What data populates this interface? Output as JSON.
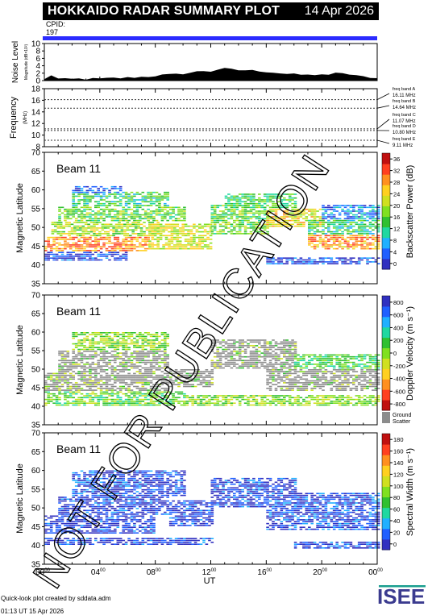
{
  "header": {
    "title": "HOKKAIDO RADAR SUMMARY PLOT",
    "date": "14 Apr 2026",
    "cpid_label": "CPID:",
    "cpid_value": "197"
  },
  "colors": {
    "header_bg": "#000000",
    "cpid_bar": "#2b2bff",
    "ground_scatter": "#8c8c8c"
  },
  "chart_data": [
    {
      "type": "area",
      "id": "noise",
      "ylabel": "Noise Level",
      "ylabel_sub": "Magnitude (dB×10²)",
      "ylim": [
        0,
        10
      ],
      "yticks": [
        "0",
        "2",
        "4",
        "6",
        "8",
        "10"
      ],
      "x": [
        0,
        0.5,
        1,
        1.5,
        2,
        2.5,
        3,
        3.5,
        4,
        4.5,
        5,
        5.5,
        6,
        6.5,
        7,
        7.5,
        8,
        8.5,
        9,
        9.5,
        10,
        10.5,
        11,
        11.5,
        12,
        12.5,
        13,
        13.5,
        14,
        14.5,
        15,
        15.5,
        16,
        16.5,
        17,
        17.5,
        18,
        18.5,
        19,
        19.5,
        20,
        20.5,
        21,
        21.5,
        22,
        22.5,
        23,
        23.5,
        24
      ],
      "values": [
        0.3,
        1.5,
        0.5,
        0.4,
        0.4,
        0.5,
        0.4,
        0.5,
        0.5,
        0.6,
        0.7,
        0.7,
        0.8,
        0.9,
        1.0,
        1.1,
        1.3,
        1.5,
        1.6,
        1.7,
        1.9,
        2.1,
        2.4,
        2.6,
        2.5,
        3.0,
        3.2,
        3.0,
        2.8,
        2.8,
        2.7,
        2.6,
        2.4,
        2.2,
        2.0,
        1.8,
        1.7,
        1.6,
        1.5,
        1.6,
        1.7,
        1.4,
        2.0,
        2.1,
        1.6,
        1.3,
        1.1,
        0.9,
        0.6
      ]
    },
    {
      "type": "line",
      "id": "frequency",
      "ylabel": "Frequency",
      "ylabel_sub": "(MHz)",
      "ylim": [
        8,
        18
      ],
      "yticks": [
        "8",
        "10",
        "12",
        "14",
        "16",
        "18"
      ],
      "series": [
        {
          "name": "freq band A",
          "value_label": "16.11 MHz",
          "values": [
            16.11
          ]
        },
        {
          "name": "freq band B",
          "value_label": "14.64 MHz",
          "values": [
            14.64
          ]
        },
        {
          "name": "freq band C",
          "value_label": "11.07 MHz",
          "values": [
            11.07
          ]
        },
        {
          "name": "freq band D",
          "value_label": "10.80 MHz",
          "values": [
            10.8
          ]
        },
        {
          "name": "freq band E",
          "value_label": "9.11 MHz",
          "values": [
            9.11
          ]
        }
      ]
    },
    {
      "type": "heatmap",
      "id": "power",
      "annotation": "Beam 11",
      "ylabel": "Magnetic Latitude",
      "ylim": [
        35,
        70
      ],
      "yticks": [
        "35",
        "40",
        "45",
        "50",
        "55",
        "60",
        "65",
        "70"
      ],
      "colorbar_label": "Backscatter Power (dB)",
      "colorbar_ticks": [
        "0",
        "4",
        "8",
        "12",
        "16",
        "20",
        "24",
        "28",
        "32",
        "36"
      ],
      "colorbar_colors": [
        "#3030c0",
        "#2060ff",
        "#20b0ff",
        "#20d8a0",
        "#30c030",
        "#80e020",
        "#d0e020",
        "#ffd020",
        "#ff9020",
        "#ff4020",
        "#c01010"
      ],
      "regions": [
        {
          "x": [
            0,
            6
          ],
          "lat": [
            41,
            43.5
          ],
          "level": 0.05
        },
        {
          "x": [
            0,
            7.5
          ],
          "lat": [
            43.5,
            47.5
          ],
          "level": 0.8
        },
        {
          "x": [
            0.5,
            8.5
          ],
          "lat": [
            47.5,
            51.5
          ],
          "level": 0.55
        },
        {
          "x": [
            1,
            10
          ],
          "lat": [
            51.5,
            55.5
          ],
          "level": 0.45
        },
        {
          "x": [
            2,
            9
          ],
          "lat": [
            55.5,
            59.5
          ],
          "level": 0.35
        },
        {
          "x": [
            2,
            5.5
          ],
          "lat": [
            59,
            61
          ],
          "level": 0.1
        },
        {
          "x": [
            7.5,
            12
          ],
          "lat": [
            44,
            51
          ],
          "level": 0.6
        },
        {
          "x": [
            12,
            16
          ],
          "lat": [
            48,
            56
          ],
          "level": 0.45
        },
        {
          "x": [
            13,
            18
          ],
          "lat": [
            55,
            59
          ],
          "level": 0.4
        },
        {
          "x": [
            16,
            20
          ],
          "lat": [
            50,
            55
          ],
          "level": 0.65
        },
        {
          "x": [
            19,
            24
          ],
          "lat": [
            44,
            48
          ],
          "level": 0.78
        },
        {
          "x": [
            19,
            24
          ],
          "lat": [
            48,
            52
          ],
          "level": 0.35
        },
        {
          "x": [
            20,
            24
          ],
          "lat": [
            52,
            56
          ],
          "level": 0.15
        },
        {
          "x": [
            16,
            24
          ],
          "lat": [
            40,
            42
          ],
          "level": 0.05
        }
      ]
    },
    {
      "type": "heatmap",
      "id": "velocity",
      "annotation": "Beam 11",
      "ylabel": "Magnetic Latitude",
      "ylim": [
        35,
        70
      ],
      "yticks": [
        "35",
        "40",
        "45",
        "50",
        "55",
        "60",
        "65",
        "70"
      ],
      "colorbar_label": "Doppler Velocity (m s⁻¹)",
      "colorbar_ticks": [
        "-800",
        "-600",
        "-400",
        "-200",
        "0",
        "200",
        "400",
        "600",
        "800"
      ],
      "colorbar_colors": [
        "#c01010",
        "#ff4020",
        "#ff9020",
        "#ffd020",
        "#d0e020",
        "#80e020",
        "#30c030",
        "#20d8a0",
        "#20b0ff",
        "#2060ff",
        "#3030c0"
      ],
      "ground_scatter_label": "Ground Scatter",
      "regions": [
        {
          "x": [
            0,
            10
          ],
          "lat": [
            40,
            44
          ],
          "level": 0.55
        },
        {
          "x": [
            0,
            9
          ],
          "lat": [
            44,
            49
          ],
          "level": -1
        },
        {
          "x": [
            1,
            9
          ],
          "lat": [
            49,
            55
          ],
          "level": -1
        },
        {
          "x": [
            2,
            9
          ],
          "lat": [
            55,
            60
          ],
          "level": 0.5
        },
        {
          "x": [
            9,
            12
          ],
          "lat": [
            45,
            50
          ],
          "level": -1
        },
        {
          "x": [
            12,
            18
          ],
          "lat": [
            50,
            58
          ],
          "level": -1
        },
        {
          "x": [
            16,
            24
          ],
          "lat": [
            44,
            50
          ],
          "level": -1
        },
        {
          "x": [
            18,
            24
          ],
          "lat": [
            50,
            54
          ],
          "level": 0.6
        },
        {
          "x": [
            10,
            24
          ],
          "lat": [
            40,
            43
          ],
          "level": 0.5
        }
      ]
    },
    {
      "type": "heatmap",
      "id": "width",
      "annotation": "Beam 11",
      "ylabel": "Magnetic Latitude",
      "ylim": [
        35,
        70
      ],
      "yticks": [
        "35",
        "40",
        "45",
        "50",
        "55",
        "60",
        "65",
        "70"
      ],
      "colorbar_label": "Spectral Width (m s⁻¹)",
      "colorbar_ticks": [
        "0",
        "20",
        "40",
        "60",
        "80",
        "100",
        "120",
        "140",
        "160",
        "180"
      ],
      "colorbar_colors": [
        "#3030c0",
        "#2060ff",
        "#20b0ff",
        "#20d8a0",
        "#30c030",
        "#80e020",
        "#d0e020",
        "#ffd020",
        "#ff9020",
        "#ff4020",
        "#c01010"
      ],
      "regions": [
        {
          "x": [
            0,
            12
          ],
          "lat": [
            40,
            42
          ],
          "level": 0.02
        },
        {
          "x": [
            0,
            8
          ],
          "lat": [
            43,
            48
          ],
          "level": 0.02
        },
        {
          "x": [
            1,
            9
          ],
          "lat": [
            48,
            53
          ],
          "level": 0.03
        },
        {
          "x": [
            2,
            10
          ],
          "lat": [
            53,
            60
          ],
          "level": 0.05
        },
        {
          "x": [
            9,
            12
          ],
          "lat": [
            45,
            52
          ],
          "level": 0.03
        },
        {
          "x": [
            12,
            18
          ],
          "lat": [
            50,
            58
          ],
          "level": 0.04
        },
        {
          "x": [
            16,
            24
          ],
          "lat": [
            44,
            50
          ],
          "level": 0.05
        },
        {
          "x": [
            18,
            24
          ],
          "lat": [
            50,
            54
          ],
          "level": 0.08
        },
        {
          "x": [
            18,
            24
          ],
          "lat": [
            39,
            41
          ],
          "level": 0.05
        }
      ]
    }
  ],
  "xaxis": {
    "label": "UT",
    "ticks": [
      {
        "h": "00",
        "m": "00"
      },
      {
        "h": "04",
        "m": "00"
      },
      {
        "h": "08",
        "m": "00"
      },
      {
        "h": "12",
        "m": "00"
      },
      {
        "h": "16",
        "m": "00"
      },
      {
        "h": "20",
        "m": "00"
      },
      {
        "h": "00",
        "m": "00"
      }
    ]
  },
  "watermark": "NOT FOR PUBLICATION",
  "footer": {
    "credit": "Quick-look plot created by sddata.adm",
    "timestamp": "01:13 UT 15 Apr 2026"
  },
  "logo": {
    "text": "ISEE"
  }
}
